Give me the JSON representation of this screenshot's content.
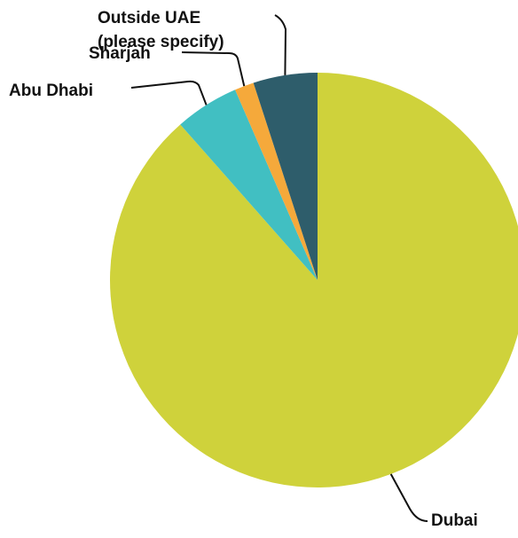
{
  "chart_data": {
    "type": "pie",
    "title": "",
    "start_angle_deg": 0,
    "direction": "clockwise",
    "slices": [
      {
        "label": "Dubai",
        "value": 88.5,
        "color": "#cfd23b"
      },
      {
        "label": "Abu Dhabi",
        "value": 5.0,
        "color": "#41bfc2"
      },
      {
        "label": "Sharjah",
        "value": 1.5,
        "color": "#f5a93b"
      },
      {
        "label": "Outside UAE (please specify)",
        "label_lines": [
          "Outside UAE",
          "(please specify)"
        ],
        "value": 5.0,
        "color": "#2e5d6b"
      }
    ],
    "legend": "none"
  }
}
